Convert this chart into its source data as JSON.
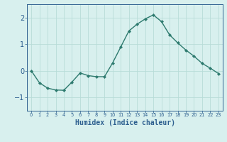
{
  "x": [
    0,
    1,
    2,
    3,
    4,
    5,
    6,
    7,
    8,
    9,
    10,
    11,
    12,
    13,
    14,
    15,
    16,
    17,
    18,
    19,
    20,
    21,
    22,
    23
  ],
  "y": [
    0.0,
    -0.45,
    -0.65,
    -0.72,
    -0.73,
    -0.42,
    -0.08,
    -0.18,
    -0.22,
    -0.22,
    0.3,
    0.9,
    1.5,
    1.75,
    1.95,
    2.1,
    1.85,
    1.35,
    1.05,
    0.78,
    0.55,
    0.28,
    0.1,
    -0.1
  ],
  "line_color": "#2d7a6e",
  "marker": "D",
  "marker_size": 2.2,
  "line_width": 1.0,
  "bg_color": "#d8f0ee",
  "grid_color": "#b8dcd8",
  "xlabel": "Humidex (Indice chaleur)",
  "xlabel_fontsize": 7,
  "xlabel_color": "#2d5f8f",
  "tick_color": "#2d5f8f",
  "label_color": "#2d5f8f",
  "ylim": [
    -1.5,
    2.5
  ],
  "xlim": [
    -0.5,
    23.5
  ],
  "yticks": [
    -1,
    0,
    1,
    2
  ],
  "xtick_labels": [
    "0",
    "1",
    "2",
    "3",
    "4",
    "5",
    "6",
    "7",
    "8",
    "9",
    "10",
    "11",
    "12",
    "13",
    "14",
    "15",
    "16",
    "17",
    "18",
    "19",
    "20",
    "21",
    "22",
    "23"
  ]
}
